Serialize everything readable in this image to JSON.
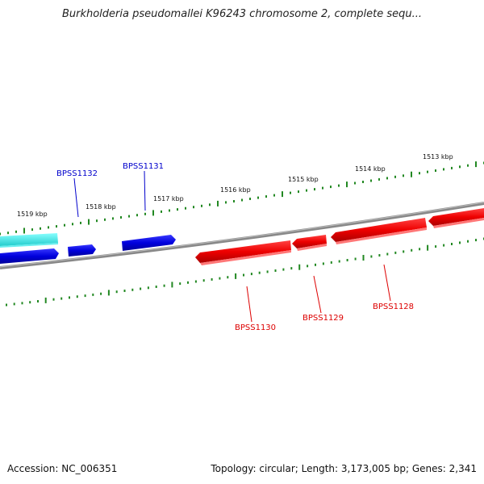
{
  "title": "Burkholderia pseudomallei K96243 chromosome 2, complete sequ...",
  "footer": {
    "accession": "Accession: NC_006351",
    "summary": "Topology: circular; Length: 3,173,005 bp; Genes: 2,341"
  },
  "scale_ticks": [
    "1519 kbp",
    "1518 kbp",
    "1517 kbp",
    "1516 kbp",
    "1515 kbp",
    "1514 kbp",
    "1513 kbp"
  ],
  "genes": [
    {
      "name": "BPSS1132",
      "strand": "forward",
      "color": "#0000cc"
    },
    {
      "name": "BPSS1131",
      "strand": "forward",
      "color": "#0000cc"
    },
    {
      "name": "BPSS1130",
      "strand": "reverse",
      "color": "#dd0000"
    },
    {
      "name": "BPSS1129",
      "strand": "reverse",
      "color": "#dd0000"
    },
    {
      "name": "BPSS1128",
      "strand": "reverse",
      "color": "#dd0000"
    }
  ],
  "colors": {
    "forward_gene": "#0000cc",
    "reverse_gene": "#dd0000",
    "other_feature": "#33dddd",
    "backbone": "#888888",
    "tick": "#228822"
  }
}
